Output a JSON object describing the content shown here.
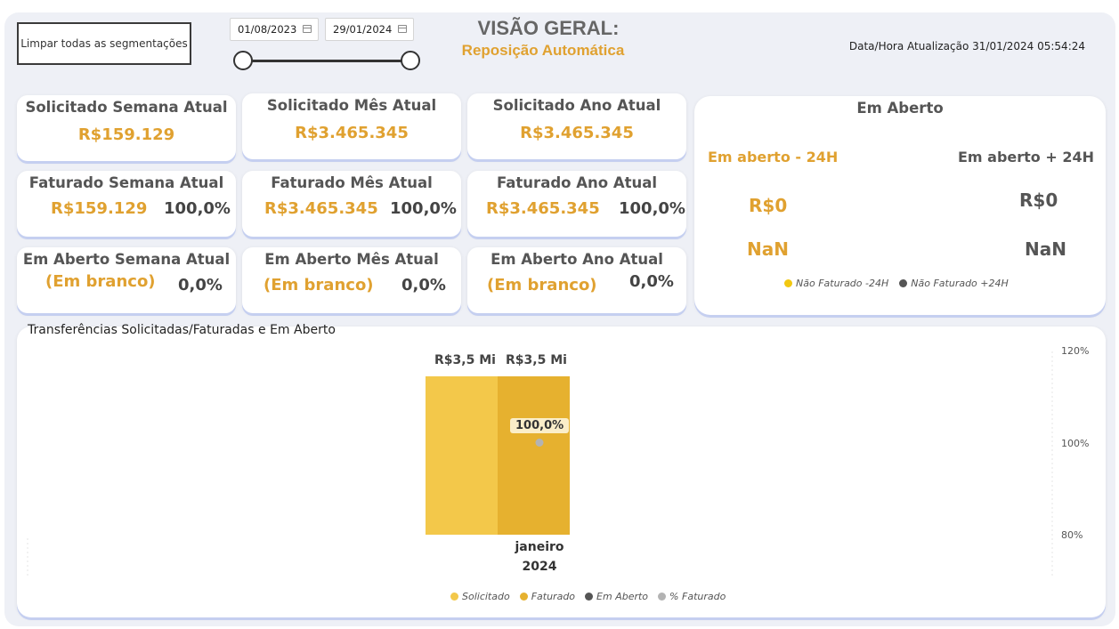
{
  "controls": {
    "clear_label": "Limpar todas as segmentações",
    "date_start": "01/08/2023",
    "date_end": "29/01/2024"
  },
  "header": {
    "title": "VISÃO GERAL:",
    "subtitle": "Reposição Automática",
    "updated": "Data/Hora Atualização 31/01/2024 05:54:24"
  },
  "cards": {
    "solicitado_semana": {
      "title": "Solicitado Semana Atual",
      "value": "R$159.129"
    },
    "solicitado_mes": {
      "title": "Solicitado Mês Atual",
      "value": "R$3.465.345"
    },
    "solicitado_ano": {
      "title": "Solicitado Ano Atual",
      "value": "R$3.465.345"
    },
    "faturado_semana": {
      "title": "Faturado Semana Atual",
      "value": "R$159.129",
      "pct": "100,0%"
    },
    "faturado_mes": {
      "title": "Faturado Mês Atual",
      "value": "R$3.465.345",
      "pct": "100,0%"
    },
    "faturado_ano": {
      "title": "Faturado Ano Atual",
      "value": "R$3.465.345",
      "pct": "100,0%"
    },
    "aberto_semana": {
      "title": "Em Aberto Semana Atual",
      "value": "(Em branco)",
      "pct": "0,0%"
    },
    "aberto_mes": {
      "title": "Em Aberto Mês Atual",
      "value": "(Em branco)",
      "pct": "0,0%"
    },
    "aberto_ano": {
      "title": "Em Aberto Ano Atual",
      "value": "(Em branco)",
      "pct": "0,0%"
    }
  },
  "open_panel": {
    "title": "Em Aberto",
    "minus24_label": "Em aberto - 24H",
    "plus24_label": "Em aberto + 24H",
    "minus24_value": "R$0",
    "plus24_value": "R$0",
    "minus24_pct": "NaN",
    "plus24_pct": "NaN",
    "legend": [
      {
        "label": "Não Faturado -24H",
        "color": "#f2c811"
      },
      {
        "label": "Não Faturado +24H",
        "color": "#555555"
      }
    ]
  },
  "colors": {
    "accent": "#e0a130",
    "solicitado": "#f3c84a",
    "faturado": "#e6b12f",
    "em_aberto": "#555555",
    "pct_faturado": "#b3b3b3"
  },
  "chart_data": {
    "type": "bar",
    "title": "Transferências Solicitadas/Faturadas e Em Aberto",
    "categories": [
      "janeiro 2024"
    ],
    "category_line1": "janeiro",
    "category_line2": "2024",
    "series": [
      {
        "name": "Solicitado",
        "values": [
          3465345
        ],
        "label": "R$3,5 Mi",
        "color": "#f3c84a"
      },
      {
        "name": "Faturado",
        "values": [
          3465345
        ],
        "label": "R$3,5 Mi",
        "color": "#e6b12f"
      },
      {
        "name": "Em Aberto",
        "values": [
          0
        ],
        "color": "#555555"
      },
      {
        "name": "% Faturado",
        "values": [
          100.0
        ],
        "label": "100,0%",
        "axis": "secondary",
        "type": "scatter",
        "color": "#b3b3b3"
      }
    ],
    "y2_ticks": [
      "120%",
      "100%",
      "80%"
    ],
    "y2_tick_values": [
      120,
      100,
      80
    ],
    "y2lim": [
      80,
      120
    ],
    "legend_position": "bottom-center",
    "grid": false
  }
}
